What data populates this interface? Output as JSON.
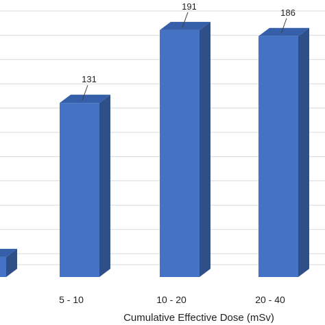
{
  "chart_data": {
    "type": "bar",
    "categories": [
      "",
      "5 - 10",
      "10 - 20",
      "20 - 40"
    ],
    "values": [
      4,
      131,
      191,
      186
    ],
    "data_labels": [
      "",
      "131",
      "191",
      "186"
    ],
    "xlabel": "Cumulative Effective Dose (mSv)",
    "ylabel": "",
    "ylim": [
      0,
      200
    ],
    "y_gridline_step": 20,
    "grid": true,
    "bar_style": "3d",
    "colors": {
      "bar_front": "#4472c4",
      "bar_side": "#2e4f87",
      "bar_top": "#355fa8",
      "grid": "#d9d9d9",
      "leader": "#404040"
    }
  }
}
